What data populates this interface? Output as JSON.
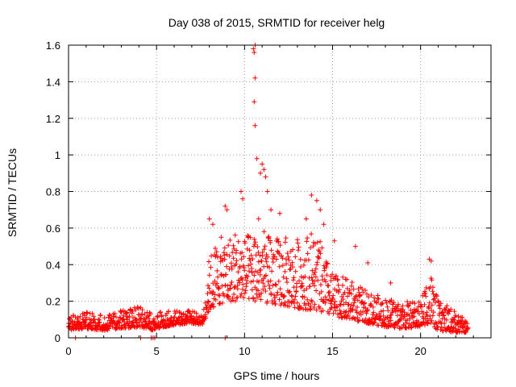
{
  "chart_data": {
    "type": "scatter",
    "title": "Day 038 of 2015, SRMTID for receiver helg",
    "xlabel": "GPS time / hours",
    "ylabel": "SRMTID / TECUs",
    "xlim": [
      0,
      24
    ],
    "ylim": [
      0,
      1.6
    ],
    "grid": true,
    "marker": "+",
    "series_color": "#ff0000",
    "x_ticks": [
      0,
      5,
      10,
      15,
      20
    ],
    "y_ticks": [
      0,
      0.2,
      0.4,
      0.6,
      0.8,
      1,
      1.2,
      1.4,
      1.6
    ],
    "x_tick_labels": [
      "0",
      "5",
      "10",
      "15",
      "20"
    ],
    "y_tick_labels": [
      "0",
      "0.2",
      "0.4",
      "0.6",
      "0.8",
      "1",
      "1.2",
      "1.4",
      "1.6"
    ],
    "envelope": {
      "x": [
        0,
        1,
        2,
        3,
        4,
        4.8,
        5,
        6,
        7,
        7.6,
        8,
        8.5,
        9,
        9.5,
        10,
        10.5,
        11,
        11.5,
        12,
        13,
        14,
        15,
        16,
        17,
        18,
        19,
        20,
        20.5,
        21,
        22,
        22.7
      ],
      "low": [
        0.04,
        0.05,
        0.04,
        0.05,
        0.06,
        0.04,
        0.05,
        0.07,
        0.08,
        0.07,
        0.15,
        0.18,
        0.2,
        0.2,
        0.22,
        0.2,
        0.2,
        0.18,
        0.18,
        0.16,
        0.15,
        0.12,
        0.1,
        0.08,
        0.06,
        0.05,
        0.06,
        0.08,
        0.04,
        0.03,
        0.03
      ],
      "high": [
        0.12,
        0.14,
        0.12,
        0.15,
        0.17,
        0.13,
        0.14,
        0.15,
        0.15,
        0.12,
        0.45,
        0.55,
        0.55,
        0.6,
        0.55,
        0.6,
        0.6,
        0.55,
        0.55,
        0.55,
        0.6,
        0.35,
        0.32,
        0.25,
        0.22,
        0.2,
        0.2,
        0.4,
        0.2,
        0.15,
        0.08
      ]
    },
    "peaks": [
      {
        "x": 8.0,
        "y": 0.65
      },
      {
        "x": 8.2,
        "y": 0.62
      },
      {
        "x": 8.9,
        "y": 0.72
      },
      {
        "x": 9.8,
        "y": 0.8
      },
      {
        "x": 9.9,
        "y": 0.76
      },
      {
        "x": 10.5,
        "y": 1.58
      },
      {
        "x": 10.55,
        "y": 1.56
      },
      {
        "x": 10.6,
        "y": 1.6
      },
      {
        "x": 10.6,
        "y": 1.42
      },
      {
        "x": 10.55,
        "y": 1.29
      },
      {
        "x": 10.6,
        "y": 1.16
      },
      {
        "x": 10.7,
        "y": 0.98
      },
      {
        "x": 11.0,
        "y": 0.95
      },
      {
        "x": 11.1,
        "y": 0.92
      },
      {
        "x": 11.2,
        "y": 0.88
      },
      {
        "x": 10.9,
        "y": 0.9
      },
      {
        "x": 11.3,
        "y": 0.8
      },
      {
        "x": 11.5,
        "y": 0.7
      },
      {
        "x": 13.8,
        "y": 0.78
      },
      {
        "x": 14.1,
        "y": 0.75
      },
      {
        "x": 14.3,
        "y": 0.7
      },
      {
        "x": 14.5,
        "y": 0.62
      },
      {
        "x": 16.3,
        "y": 0.5
      },
      {
        "x": 20.5,
        "y": 0.43
      },
      {
        "x": 20.6,
        "y": 0.42
      },
      {
        "x": 9.0,
        "y": 0.7
      },
      {
        "x": 10.8,
        "y": 0.65
      },
      {
        "x": 12.0,
        "y": 0.68
      },
      {
        "x": 13.5,
        "y": 0.65
      },
      {
        "x": 15.1,
        "y": 0.53
      },
      {
        "x": 17.0,
        "y": 0.41
      },
      {
        "x": 18.3,
        "y": 0.3
      }
    ],
    "zero_points": [
      {
        "x": 0.4,
        "y": 0.0
      },
      {
        "x": 4.1,
        "y": 0.0
      },
      {
        "x": 4.7,
        "y": 0.0
      },
      {
        "x": 4.8,
        "y": 0.0
      },
      {
        "x": 4.9,
        "y": 0.0
      },
      {
        "x": 8.9,
        "y": 0.0
      }
    ]
  }
}
